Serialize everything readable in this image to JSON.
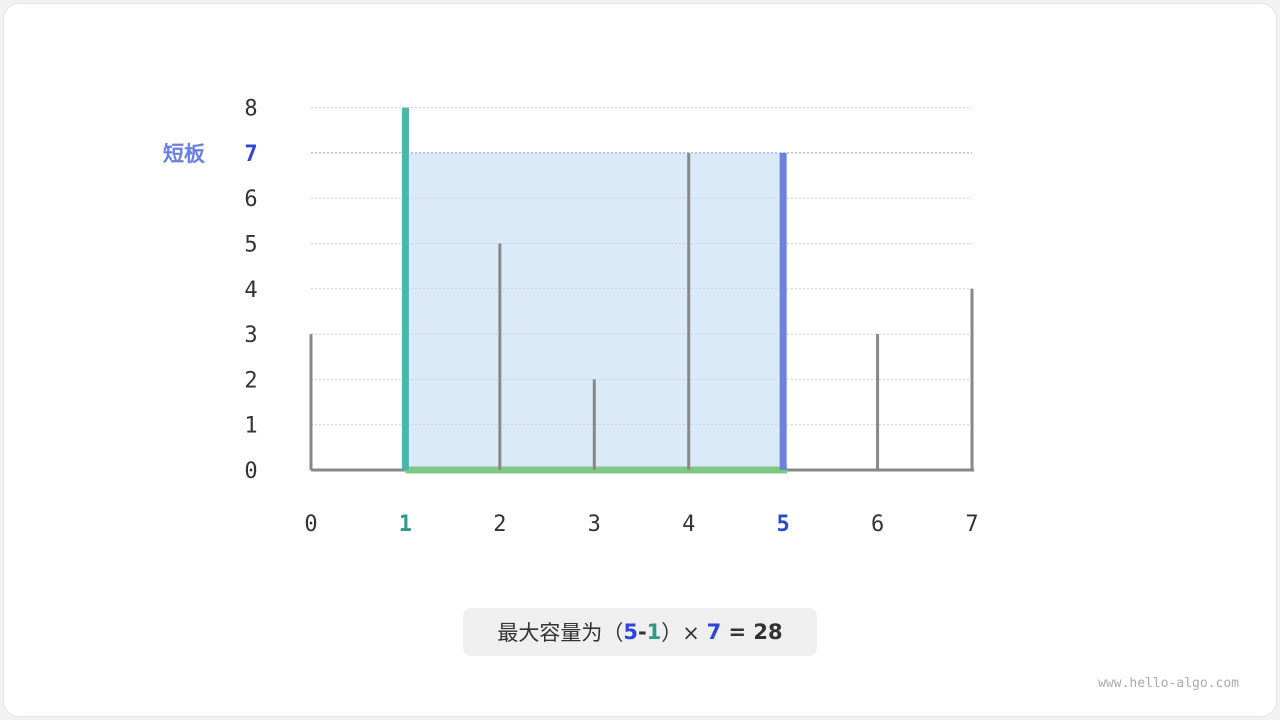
{
  "chart_data": {
    "type": "bar",
    "categories": [
      "0",
      "1",
      "2",
      "3",
      "4",
      "5",
      "6",
      "7"
    ],
    "values": [
      3,
      8,
      5,
      2,
      7,
      7,
      3,
      4
    ],
    "ylim": [
      0,
      8
    ],
    "yticks": [
      "0",
      "1",
      "2",
      "3",
      "4",
      "5",
      "6",
      "7",
      "8"
    ],
    "grid": true,
    "highlight": {
      "left_index": 1,
      "right_index": 5,
      "water_level": 7
    },
    "short_board_label": "短板",
    "colors": {
      "bar": "#888888",
      "left": "#4db6ac",
      "right": "#6b80e0",
      "water": "#dbeaf8",
      "base": "#81c784",
      "accent_blue": "#2d46d6",
      "accent_teal": "#2e9b88"
    }
  },
  "caption": {
    "prefix": "最大容量为（",
    "a": "5",
    "minus": "-",
    "b": "1",
    "suffix": "）× ",
    "h": "7",
    "eq": " = 28"
  },
  "watermark": "www.hello-algo.com"
}
